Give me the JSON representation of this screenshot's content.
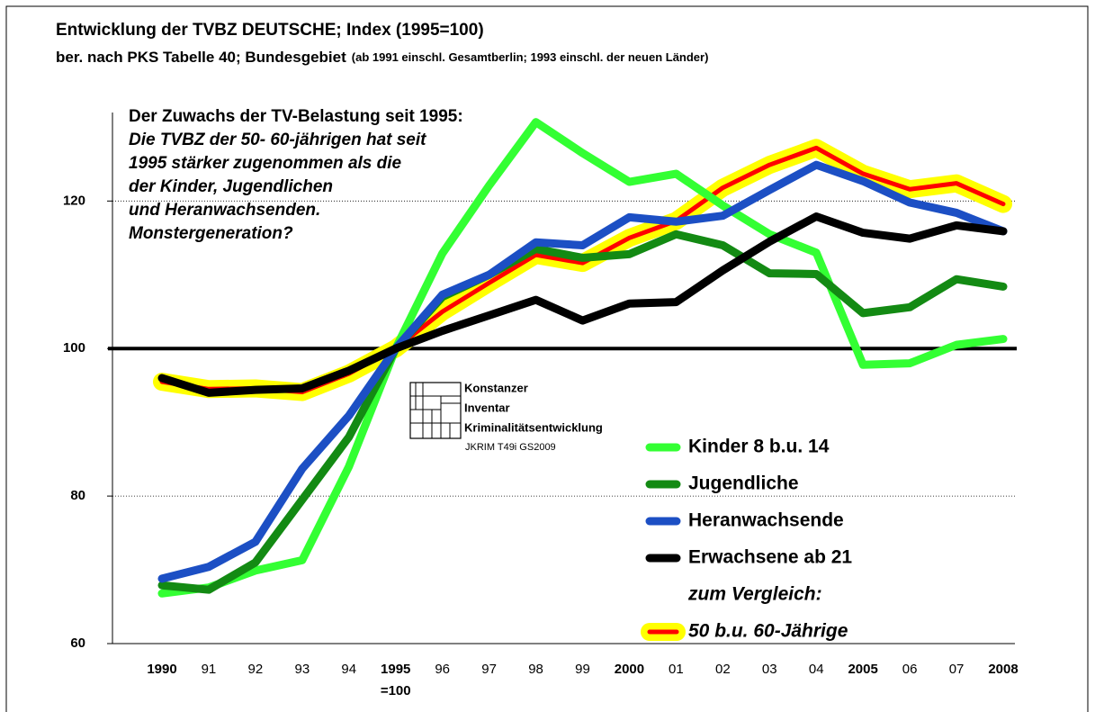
{
  "chart_data": {
    "type": "line",
    "title": "Entwicklung der TVBZ DEUTSCHE; Index (1995=100)",
    "subtitle": "ber. nach PKS Tabelle 40; Bundesgebiet",
    "subtitle_note": "(ab 1991 einschl. Gesamtberlin; 1993 einschl. der neuen Länder)",
    "annotation": [
      "Der Zuwachs der TV-Belastung seit  1995:",
      "Die TVBZ der 50- 60-jährigen hat seit",
      "1995 stärker zugenommen als die",
      "der Kinder, Jugendlichen",
      "und Heranwachsenden.",
      "Monstergeneration?"
    ],
    "logo": [
      "Konstanzer",
      "Inventar",
      "Kriminalitätsentwicklung"
    ],
    "logo_note": "JKRIM  T49i GS2009",
    "legend_note": "zum Vergleich:",
    "base_label": "=100",
    "categories": [
      "1990",
      "91",
      "92",
      "93",
      "94",
      "1995",
      "96",
      "97",
      "98",
      "99",
      "2000",
      "01",
      "02",
      "03",
      "04",
      "2005",
      "06",
      "07",
      "2008"
    ],
    "ylim": [
      60,
      132
    ],
    "yticks": [
      60,
      80,
      100,
      120
    ],
    "grid": true,
    "reference_line": 100,
    "series": [
      {
        "name": "50 b.u. 60-Jährige",
        "color": "#ff0000",
        "halo_color": "#ffff00",
        "values": [
          95.5,
          94.5,
          94.6,
          94.1,
          96.6,
          100,
          105,
          108.9,
          112.7,
          111.6,
          115,
          117.3,
          121.8,
          124.9,
          127.2,
          123.7,
          121.6,
          122.4,
          119.6
        ]
      },
      {
        "name": "Kinder 8 b.u. 14",
        "color": "#33ff33",
        "values": [
          66.8,
          67.6,
          69.9,
          71.3,
          84,
          100,
          112.9,
          122.1,
          130.7,
          126.5,
          122.6,
          123.7,
          119.4,
          115.5,
          113,
          97.8,
          98,
          100.5,
          101.3
        ]
      },
      {
        "name": "Jugendliche",
        "color": "#138a13",
        "values": [
          67.9,
          67.3,
          71,
          79.5,
          88,
          100,
          107,
          110,
          113.5,
          112.3,
          112.8,
          115.5,
          114,
          110.2,
          110.1,
          104.8,
          105.6,
          109.4,
          108.4
        ]
      },
      {
        "name": "Heranwachsende",
        "color": "#1c4fc4",
        "values": [
          68.8,
          70.4,
          73.8,
          83.7,
          90.9,
          100,
          107.3,
          110,
          114.4,
          114,
          117.8,
          117.2,
          118,
          121.5,
          124.9,
          122.7,
          119.8,
          118.4,
          115.9
        ]
      },
      {
        "name": "Erwachsene ab 21",
        "color": "#000000",
        "values": [
          96,
          94,
          94.4,
          94.6,
          97,
          100,
          102.4,
          104.5,
          106.6,
          103.8,
          106.1,
          106.3,
          110.6,
          114.5,
          117.9,
          115.7,
          114.9,
          116.7,
          115.9
        ]
      }
    ]
  }
}
